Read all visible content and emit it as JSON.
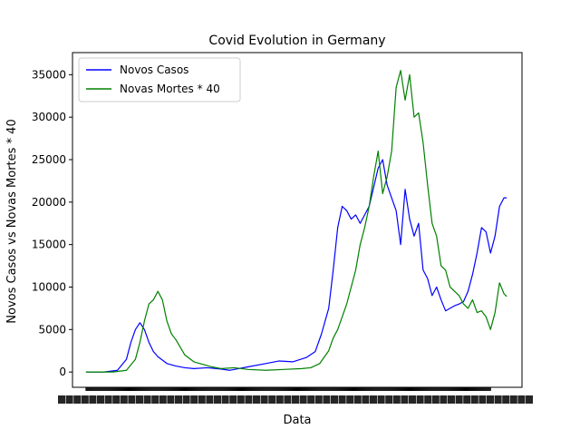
{
  "chart_data": {
    "type": "line",
    "title": "Covid Evolution in Germany",
    "xlabel": "Data",
    "ylabel": "Novos Casos vs Novas Mortes * 40",
    "ylim": [
      -1800,
      37600
    ],
    "yticks": [
      0,
      5000,
      10000,
      15000,
      20000,
      25000,
      30000,
      35000
    ],
    "legend_position": "upper-left",
    "x_tick_label_note": "overlapping dense date labels (unreadable)",
    "series": [
      {
        "name": "Novos Casos",
        "color": "#0000ff",
        "x": [
          0,
          20,
          35,
          45,
          50,
          55,
          60,
          65,
          70,
          75,
          80,
          90,
          100,
          110,
          120,
          135,
          150,
          160,
          180,
          200,
          215,
          230,
          245,
          255,
          262,
          270,
          275,
          280,
          285,
          290,
          295,
          300,
          305,
          315,
          325,
          330,
          335,
          340,
          345,
          350,
          355,
          360,
          365,
          370,
          375,
          380,
          385,
          390,
          395,
          400,
          405,
          410,
          415,
          420,
          425,
          430,
          435,
          440,
          445,
          450,
          455,
          460,
          465,
          468
        ],
        "values": [
          0,
          0,
          200,
          1500,
          3500,
          5000,
          5800,
          5000,
          3500,
          2400,
          1800,
          1000,
          700,
          500,
          400,
          500,
          350,
          200,
          600,
          1000,
          1300,
          1200,
          1700,
          2400,
          4500,
          7500,
          12000,
          17000,
          19500,
          19000,
          18000,
          18500,
          17500,
          19500,
          24000,
          25000,
          22000,
          20500,
          19000,
          15000,
          21500,
          18000,
          16000,
          17500,
          12000,
          11000,
          9000,
          10000,
          8500,
          7200,
          7500,
          7800,
          8000,
          8300,
          9500,
          11500,
          14000,
          17000,
          16500,
          14000,
          16000,
          19500,
          20500,
          20500
        ]
      },
      {
        "name": "Novas Mortes * 40",
        "color": "#008000",
        "x": [
          0,
          30,
          45,
          55,
          60,
          65,
          70,
          75,
          80,
          85,
          90,
          95,
          100,
          110,
          120,
          130,
          140,
          150,
          165,
          180,
          200,
          220,
          240,
          250,
          260,
          270,
          275,
          280,
          285,
          290,
          295,
          300,
          305,
          310,
          315,
          320,
          325,
          330,
          335,
          340,
          345,
          350,
          355,
          360,
          365,
          370,
          375,
          380,
          385,
          390,
          395,
          400,
          405,
          410,
          415,
          420,
          425,
          430,
          435,
          440,
          445,
          450,
          455,
          460,
          465,
          468
        ],
        "values": [
          0,
          0,
          200,
          1500,
          3500,
          6000,
          8000,
          8500,
          9500,
          8500,
          6000,
          4500,
          3800,
          2000,
          1200,
          900,
          600,
          400,
          500,
          300,
          200,
          300,
          400,
          500,
          1000,
          2500,
          4000,
          5000,
          6500,
          8000,
          10000,
          12000,
          15000,
          17000,
          19500,
          23000,
          26000,
          21000,
          23000,
          26000,
          33500,
          35500,
          32000,
          35000,
          30000,
          30500,
          27000,
          22000,
          17500,
          16000,
          12500,
          12000,
          10000,
          9500,
          9000,
          8000,
          7500,
          8500,
          7000,
          7200,
          6500,
          5000,
          7000,
          10500,
          9200,
          8900
        ]
      }
    ]
  }
}
